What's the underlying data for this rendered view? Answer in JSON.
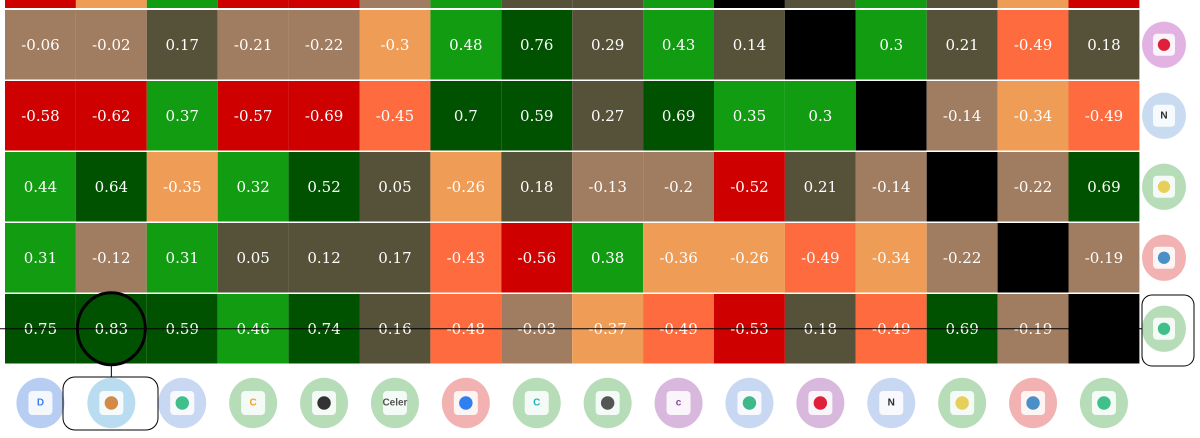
{
  "chart_data": {
    "type": "heatmap",
    "title": "",
    "xlabel": "",
    "ylabel": "",
    "rows": [
      {
        "icon": "tron-icon",
        "values": [
          -0.06,
          -0.02,
          0.17,
          -0.21,
          -0.22,
          -0.3,
          0.48,
          0.76,
          0.29,
          0.43,
          0.14,
          null,
          0.3,
          0.21,
          -0.49,
          0.18
        ]
      },
      {
        "icon": "nervos-icon",
        "values": [
          -0.58,
          -0.62,
          0.37,
          -0.57,
          -0.69,
          -0.45,
          0.7,
          0.59,
          0.27,
          0.69,
          0.35,
          0.3,
          null,
          -0.14,
          -0.34,
          -0.49
        ]
      },
      {
        "icon": "yellow-coin-icon",
        "values": [
          0.44,
          0.64,
          -0.35,
          0.32,
          0.52,
          0.05,
          -0.26,
          0.18,
          -0.13,
          -0.2,
          -0.52,
          0.21,
          -0.14,
          null,
          -0.22,
          0.69
        ]
      },
      {
        "icon": "droplet-icon",
        "values": [
          0.31,
          -0.12,
          0.31,
          0.05,
          0.12,
          0.17,
          -0.43,
          -0.56,
          0.38,
          -0.36,
          -0.26,
          -0.49,
          -0.34,
          -0.22,
          null,
          -0.19
        ]
      },
      {
        "icon": "green-leaf-icon",
        "values": [
          0.75,
          0.83,
          0.59,
          0.46,
          0.74,
          0.16,
          -0.48,
          -0.03,
          -0.37,
          -0.49,
          -0.53,
          0.18,
          -0.49,
          0.69,
          -0.19,
          null
        ]
      }
    ],
    "columns": [
      {
        "icon": "blue-swap-icon",
        "bg": "#b7cdf2",
        "fg": "#3b82f6",
        "letter": "D"
      },
      {
        "icon": "pancake-icon",
        "bg": "#b9dcf0",
        "fg": "#d18b47",
        "letter": ""
      },
      {
        "icon": "green-stripes-icon",
        "bg": "#c9d8f2",
        "fg": "#3fbf8a",
        "letter": ""
      },
      {
        "icon": "orange-c-icon",
        "bg": "#b7dcb8",
        "fg": "#f0a028",
        "letter": "C"
      },
      {
        "icon": "chain-link-icon",
        "bg": "#b7dcb8",
        "fg": "#333333",
        "letter": ""
      },
      {
        "icon": "celer-icon",
        "bg": "#b7dcb8",
        "fg": "#555555",
        "letter": "Celer"
      },
      {
        "icon": "blue-hex-icon",
        "bg": "#f2b2b2",
        "fg": "#2f7ff0",
        "letter": ""
      },
      {
        "icon": "cyan-c-icon",
        "bg": "#b7dcb8",
        "fg": "#18b8c8",
        "letter": "C"
      },
      {
        "icon": "grey-token-icon",
        "bg": "#b7dcb8",
        "fg": "#555555",
        "letter": ""
      },
      {
        "icon": "purple-c-icon",
        "bg": "#d8b8dc",
        "fg": "#8a4aa0",
        "letter": "c"
      },
      {
        "icon": "green-orb-icon",
        "bg": "#c9d8f2",
        "fg": "#3fb88a",
        "letter": ""
      },
      {
        "icon": "tron-icon",
        "bg": "#d8b8dc",
        "fg": "#e0203a",
        "letter": ""
      },
      {
        "icon": "nervos-icon",
        "bg": "#c9d8f2",
        "fg": "#2a2a2a",
        "letter": "N"
      },
      {
        "icon": "yellow-coin-icon",
        "bg": "#b7dcb8",
        "fg": "#e8cf5a",
        "letter": ""
      },
      {
        "icon": "droplet-icon",
        "bg": "#f2b2b2",
        "fg": "#4a90c8",
        "letter": ""
      },
      {
        "icon": "green-leaf-icon",
        "bg": "#b7dcb8",
        "fg": "#3fbf8a",
        "letter": ""
      }
    ],
    "highlight": {
      "row": 4,
      "col": 1
    }
  },
  "row_icon_colors": [
    {
      "bg": "#e2b2e2",
      "fg": "#e0203a",
      "letter": ""
    },
    {
      "bg": "#c9dbf0",
      "fg": "#2a2a2a",
      "letter": "N"
    },
    {
      "bg": "#b7dcb8",
      "fg": "#e8cf5a",
      "letter": ""
    },
    {
      "bg": "#f2b2b2",
      "fg": "#4a90c8",
      "letter": ""
    },
    {
      "bg": "#b7dcb8",
      "fg": "#3fbf8a",
      "letter": ""
    }
  ],
  "colors": {
    "strong_pos": "#005200",
    "pos": "#129c12",
    "weak_pos": "#555239",
    "weak_neg": "#a07c60",
    "neg": "#ef9d56",
    "neg2": "#fd6b3e",
    "strong_neg": "#cf0000",
    "diag": "#000000"
  }
}
